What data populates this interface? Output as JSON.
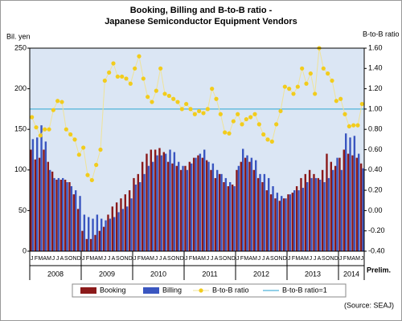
{
  "chart_data": {
    "type": "bar-line",
    "title": "Booking, Billing and B-to-B ratio -",
    "subtitle": "Japanese Semiconductor Equipment Vendors",
    "y_label": "Bil. yen",
    "y2_label": "B-to-B ratio",
    "note": "Prelim.",
    "source": "(Source: SEAJ)",
    "categories": [
      "J",
      "F",
      "M",
      "A",
      "M",
      "J",
      "J",
      "A",
      "S",
      "O",
      "N",
      "D",
      "J",
      "F",
      "M",
      "A",
      "M",
      "J",
      "J",
      "A",
      "S",
      "O",
      "N",
      "D",
      "J",
      "F",
      "M",
      "A",
      "M",
      "J",
      "J",
      "A",
      "S",
      "O",
      "N",
      "D",
      "J",
      "F",
      "M",
      "A",
      "M",
      "J",
      "J",
      "A",
      "S",
      "O",
      "N",
      "D",
      "J",
      "F",
      "M",
      "A",
      "M",
      "J",
      "J",
      "A",
      "S",
      "O",
      "N",
      "D",
      "J",
      "F",
      "M",
      "A",
      "M",
      "J",
      "J",
      "A",
      "S",
      "O",
      "N",
      "D",
      "J",
      "F",
      "M",
      "A",
      "M",
      "J"
    ],
    "years": [
      "2008",
      "2009",
      "2010",
      "2011",
      "2012",
      "2013",
      "2014"
    ],
    "series": [
      {
        "name": "Booking",
        "color": "#8b1a1a",
        "kind": "bar",
        "values": [
          125,
          113,
          115,
          125,
          110,
          98,
          88,
          88,
          88,
          85,
          70,
          52,
          25,
          15,
          15,
          20,
          25,
          30,
          45,
          55,
          60,
          65,
          70,
          75,
          90,
          95,
          110,
          120,
          125,
          125,
          127,
          122,
          110,
          108,
          105,
          100,
          105,
          110,
          115,
          118,
          115,
          112,
          100,
          90,
          95,
          85,
          80,
          82,
          100,
          110,
          115,
          110,
          100,
          90,
          85,
          75,
          70,
          65,
          62,
          65,
          70,
          72,
          80,
          90,
          95,
          100,
          95,
          90,
          100,
          120,
          110,
          105,
          115,
          125,
          120,
          118,
          115,
          108
        ]
      },
      {
        "name": "Billing",
        "color": "#3a56c0",
        "kind": "bar",
        "values": [
          138,
          140,
          155,
          135,
          100,
          90,
          90,
          90,
          85,
          80,
          75,
          68,
          45,
          42,
          40,
          45,
          40,
          38,
          40,
          42,
          48,
          52,
          55,
          65,
          82,
          85,
          95,
          105,
          110,
          118,
          118,
          120,
          125,
          122,
          110,
          105,
          100,
          108,
          115,
          120,
          125,
          110,
          108,
          100,
          95,
          90,
          85,
          80,
          105,
          126,
          118,
          115,
          112,
          95,
          95,
          90,
          80,
          72,
          68,
          65,
          70,
          75,
          75,
          78,
          85,
          90,
          90,
          88,
          85,
          90,
          100,
          115,
          100,
          145,
          140,
          142,
          120,
          102
        ]
      },
      {
        "name": "B-to-B ratio",
        "color": "#f2cc1c",
        "kind": "line",
        "axis": "y2",
        "values": [
          0.92,
          0.82,
          0.74,
          0.8,
          0.8,
          0.99,
          1.08,
          1.07,
          0.8,
          0.75,
          0.7,
          0.55,
          0.62,
          0.35,
          0.3,
          0.45,
          0.6,
          1.28,
          1.36,
          1.45,
          1.32,
          1.32,
          1.3,
          1.25,
          1.4,
          1.52,
          1.3,
          1.12,
          1.07,
          1.18,
          1.4,
          1.15,
          1.13,
          1.1,
          1.07,
          1.0,
          1.05,
          1.0,
          0.95,
          0.98,
          0.96,
          1.0,
          1.2,
          1.1,
          0.95,
          0.77,
          0.76,
          0.88,
          0.95,
          0.85,
          0.9,
          0.92,
          0.95,
          0.85,
          0.75,
          0.7,
          0.68,
          0.85,
          0.98,
          1.22,
          1.2,
          1.15,
          1.22,
          1.4,
          1.25,
          1.35,
          1.15,
          1.6,
          1.4,
          1.35,
          1.28,
          1.08,
          1.1,
          0.95,
          0.83,
          0.84,
          0.84,
          1.05
        ]
      }
    ],
    "reference_line": {
      "name": "B-to-B ratio=1",
      "value": 1,
      "color": "#4fb3d9",
      "axis": "y2"
    },
    "ylim": [
      0,
      250
    ],
    "yticks": [
      0,
      50,
      100,
      150,
      200,
      250
    ],
    "y2lim": [
      -0.4,
      1.6
    ],
    "y2ticks": [
      {
        "value": -0.4,
        "label": "-0.40"
      },
      {
        "value": -0.2,
        "label": "-0.20"
      },
      {
        "value": 0,
        "label": "0.00"
      },
      {
        "value": 0.2,
        "label": "0.20"
      },
      {
        "value": 0.4,
        "label": "0.40"
      },
      {
        "value": 0.6,
        "label": "0.60"
      },
      {
        "value": 0.8,
        "label": "0.80"
      },
      {
        "value": 1,
        "label": "1.00"
      },
      {
        "value": 1.2,
        "label": "1.20"
      },
      {
        "value": 1.4,
        "label": "1.40"
      },
      {
        "value": 1.6,
        "label": "1.60"
      }
    ],
    "background": "#dbe6f4"
  }
}
